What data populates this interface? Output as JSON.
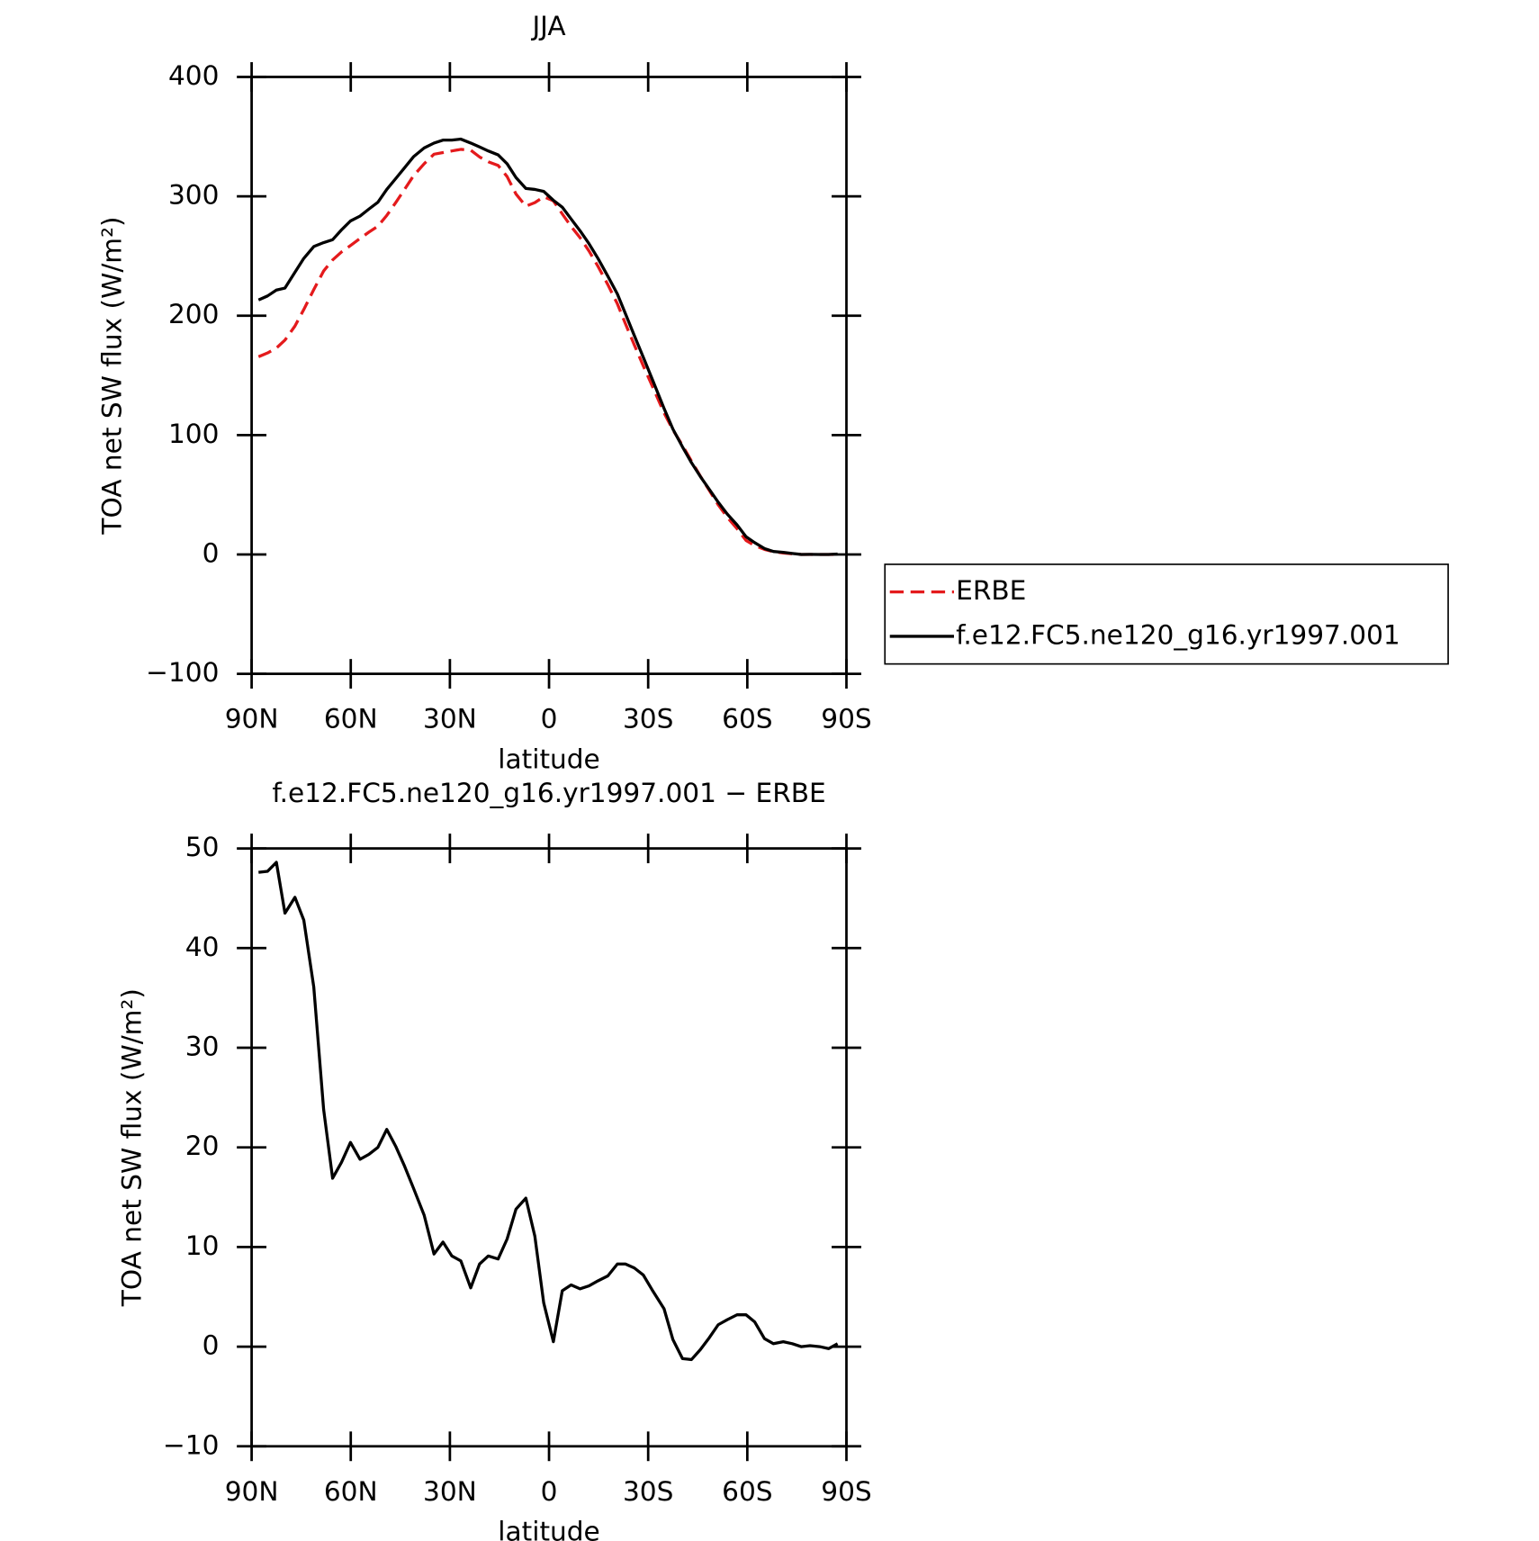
{
  "chart_data": [
    {
      "type": "line",
      "title": "JJA",
      "xlabel": "latitude",
      "ylabel": "TOA net SW flux (W/m²)",
      "x": [
        87.9,
        85.2,
        82.5,
        79.9,
        76.9,
        74.2,
        71.2,
        68.2,
        65.5,
        62.8,
        60.1,
        57.2,
        54.5,
        51.8,
        49.1,
        46.4,
        43.7,
        41.0,
        37.8,
        34.8,
        32.1,
        29.4,
        26.7,
        23.7,
        21.0,
        18.4,
        15.4,
        12.7,
        10.0,
        7.0,
        4.3,
        1.6,
        -1.3,
        -4.0,
        -6.7,
        -9.4,
        -12.1,
        -14.8,
        -17.8,
        -20.7,
        -23.1,
        -25.8,
        -28.5,
        -31.2,
        -34.8,
        -37.5,
        -40.4,
        -43.1,
        -45.8,
        -48.5,
        -51.2,
        -53.9,
        -56.9,
        -59.6,
        -62.2,
        -65.2,
        -67.9,
        -70.9,
        -73.6,
        -76.3,
        -79.0,
        -81.9,
        -84.6,
        -87.3
      ],
      "series": [
        {
          "name": "ERBE",
          "color": "#e41a1c",
          "dash": true,
          "values": [
            165.6,
            168.8,
            172.9,
            179.6,
            191.3,
            205.2,
            221.8,
            237.4,
            246.7,
            253.4,
            258.8,
            264.7,
            270.0,
            275.0,
            284.0,
            294.8,
            305.9,
            317.2,
            327.3,
            335.3,
            336.6,
            338.0,
            339.3,
            338.7,
            333.0,
            328.9,
            325.9,
            316.5,
            301.9,
            291.7,
            294.7,
            299.7,
            296.2,
            285.3,
            274.8,
            265.3,
            254.2,
            241.4,
            226.0,
            209.9,
            193.4,
            175.6,
            158.1,
            141.4,
            118.5,
            104.3,
            91.3,
            78.2,
            65.6,
            53.6,
            41.6,
            31.2,
            21.6,
            11.7,
            7.4,
            4.2,
            2.2,
            1.2,
            0.5,
            0,
            0,
            0,
            0,
            0
          ]
        },
        {
          "name": "f.e12.FC5.ne120_g16.yr1997.001",
          "color": "#000000",
          "dash": false,
          "values": [
            213.2,
            216.5,
            221.5,
            223.1,
            236.4,
            248.0,
            257.9,
            261.2,
            263.6,
            271.9,
            279.3,
            283.5,
            289.3,
            295.0,
            305.8,
            314.9,
            324.0,
            333.1,
            340.5,
            344.6,
            347.1,
            347.1,
            347.9,
            344.6,
            341.3,
            338.0,
            334.7,
            327.3,
            315.7,
            306.6,
            305.8,
            304.1,
            296.7,
            290.9,
            281.0,
            271.1,
            260.3,
            248.0,
            233.1,
            218.2,
            201.7,
            183.5,
            165.3,
            147.1,
            122.3,
            105.0,
            90.1,
            76.9,
            65.3,
            54.5,
            43.8,
            33.9,
            24.8,
            14.9,
            9.9,
            5.0,
            2.5,
            1.7,
            0.8,
            0.0,
            0.1,
            0.0,
            0,
            0.3
          ]
        }
      ],
      "xlim": [
        90,
        -90
      ],
      "xticks": [
        {
          "value": 90,
          "label": "90N"
        },
        {
          "value": 60,
          "label": "60N"
        },
        {
          "value": 30,
          "label": "30N"
        },
        0,
        {
          "value": -30,
          "label": "30S"
        },
        {
          "value": -60,
          "label": "60S"
        },
        {
          "value": -90,
          "label": "90S"
        }
      ],
      "ylim": [
        -100,
        400
      ],
      "yticks": [
        {
          "value": -100,
          "label": "−100"
        },
        0,
        100,
        200,
        300,
        400
      ],
      "legend": "right"
    },
    {
      "type": "line",
      "title": "f.e12.FC5.ne120_g16.yr1997.001 − ERBE",
      "xlabel": "latitude",
      "ylabel": "TOA net SW flux (W/m²)",
      "x": [
        87.9,
        85.2,
        82.5,
        79.9,
        76.9,
        74.2,
        71.2,
        68.2,
        65.5,
        62.8,
        60.1,
        57.2,
        54.5,
        51.8,
        49.1,
        46.4,
        43.7,
        41.0,
        37.8,
        34.8,
        32.1,
        29.4,
        26.7,
        23.7,
        21.0,
        18.4,
        15.4,
        12.7,
        10.0,
        7.0,
        4.3,
        1.6,
        -1.3,
        -4.0,
        -6.7,
        -9.4,
        -12.1,
        -14.8,
        -17.8,
        -20.7,
        -23.1,
        -25.8,
        -28.5,
        -31.2,
        -34.8,
        -37.5,
        -40.4,
        -43.1,
        -45.8,
        -48.5,
        -51.2,
        -53.9,
        -56.9,
        -59.6,
        -62.2,
        -65.2,
        -67.9,
        -70.9,
        -73.6,
        -76.3,
        -79.0,
        -81.9,
        -84.6,
        -87.3
      ],
      "series": [
        {
          "name": null,
          "color": "#000000",
          "dash": false,
          "values": [
            47.6,
            47.7,
            48.6,
            43.5,
            45.1,
            42.8,
            36.1,
            23.8,
            16.9,
            18.5,
            20.5,
            18.8,
            19.3,
            20.0,
            21.8,
            20.1,
            18.1,
            15.9,
            13.2,
            9.3,
            10.5,
            9.1,
            8.6,
            5.9,
            8.3,
            9.1,
            8.8,
            10.8,
            13.8,
            14.9,
            11.1,
            4.4,
            0.5,
            5.6,
            6.2,
            5.8,
            6.1,
            6.6,
            7.1,
            8.3,
            8.3,
            7.9,
            7.2,
            5.7,
            3.8,
            0.7,
            -1.2,
            -1.3,
            -0.3,
            0.9,
            2.2,
            2.7,
            3.2,
            3.2,
            2.5,
            0.8,
            0.3,
            0.5,
            0.3,
            0.0,
            0.1,
            0.0,
            -0.2,
            0.3
          ]
        }
      ],
      "xlim": [
        90,
        -90
      ],
      "xticks": [
        {
          "value": 90,
          "label": "90N"
        },
        {
          "value": 60,
          "label": "60N"
        },
        {
          "value": 30,
          "label": "30N"
        },
        0,
        {
          "value": -30,
          "label": "30S"
        },
        {
          "value": -60,
          "label": "60S"
        },
        {
          "value": -90,
          "label": "90S"
        }
      ],
      "ylim": [
        -10,
        50
      ],
      "yticks": [
        {
          "value": -10,
          "label": "−10"
        },
        0,
        10,
        20,
        30,
        40,
        50
      ]
    }
  ]
}
